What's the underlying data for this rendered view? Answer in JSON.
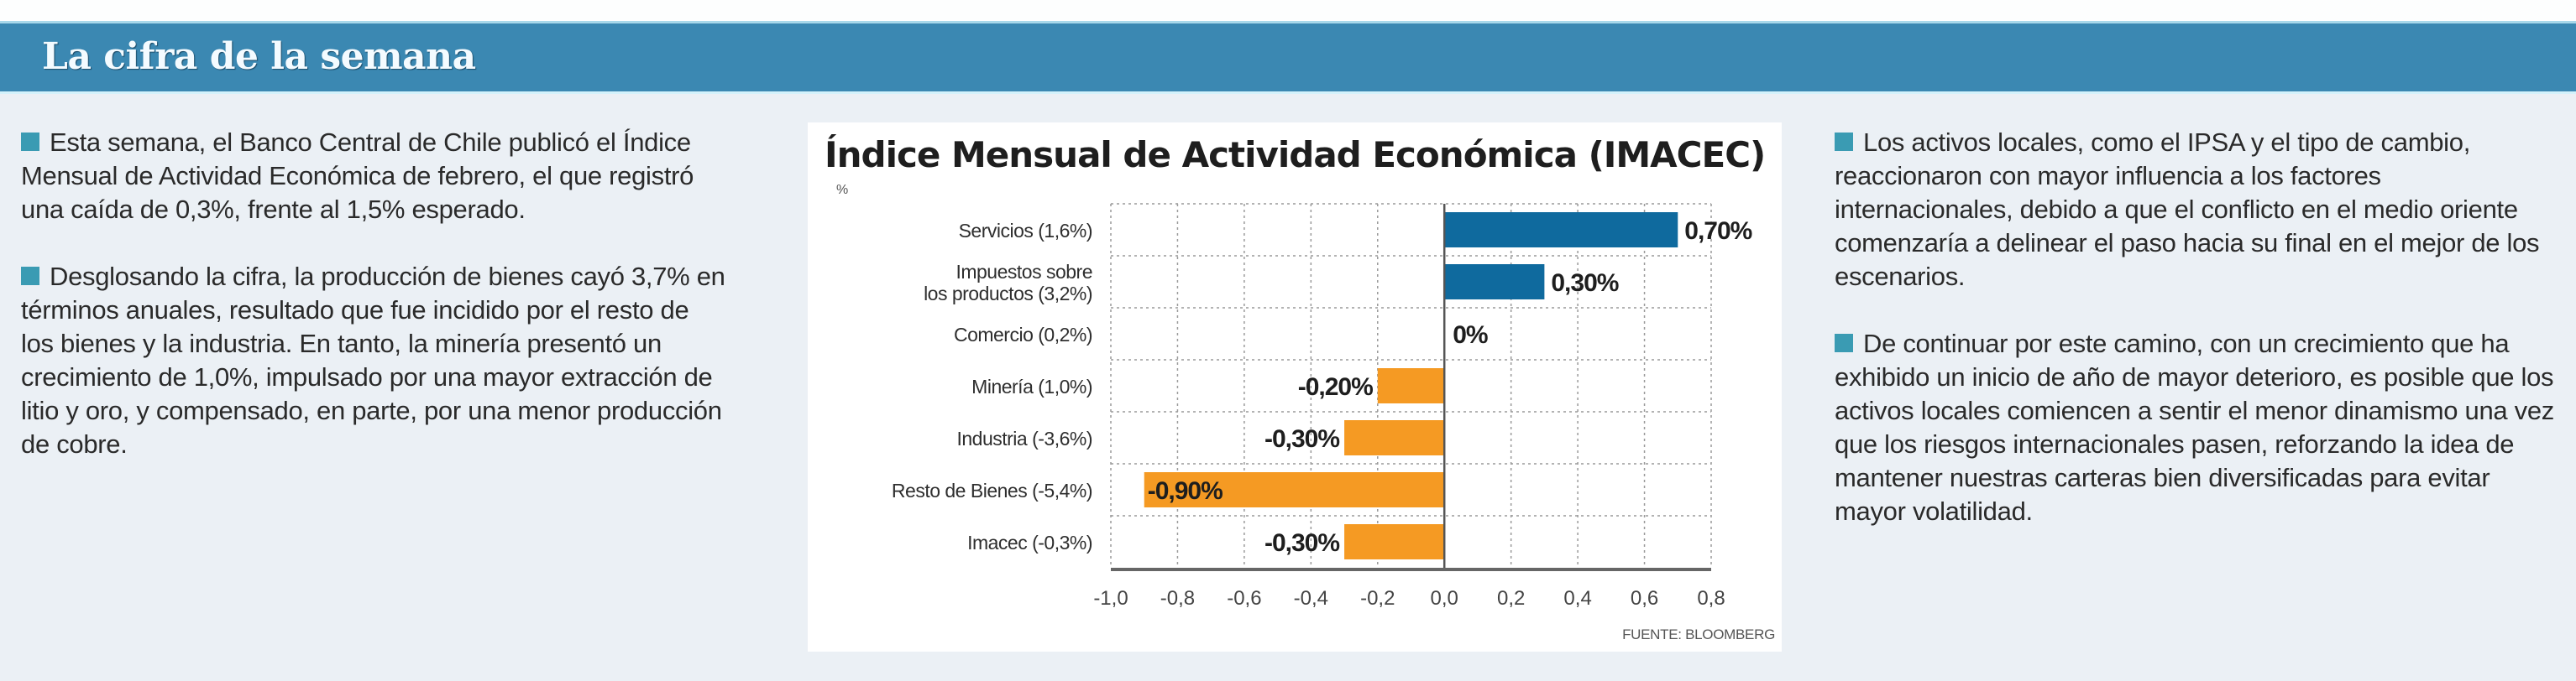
{
  "banner": {
    "title": "La cifra de la semana"
  },
  "left_column": {
    "paragraphs": [
      "Esta semana, el Banco Central de Chile publicó el Índice Mensual de Actividad Eco­nómica de febrero, el que registró una caí­da de 0,3%, frente al 1,5% esperado.",
      "Desglosando la cifra, la producción de bie­nes cayó 3,7% en términos anuales, resulta­do que fue incidido por el resto de los bienes y la industria. En tanto, la minería presentó un crecimiento de 1,0%, impulsado por una ma­yor extracción de litio y oro, y compensado, en parte, por una menor producción de cobre."
    ]
  },
  "right_column": {
    "paragraphs": [
      "Los activos locales, como el IPSA y el tipo de cambio, reaccionaron con mayor influencia a los factores internacionales, debido a que el conflic­to en el medio oriente comenzaría a delinear el paso hacia su final en el mejor de los escenarios.",
      "De continuar por este camino, con un creci­miento que ha exhibido un inicio de año de ma­yor deterioro, es posible que los activos locales comiencen a sentir el menor dinamismo una vez que los riesgos internacionales pasen, reforzan­do la idea de mantener nuestras carteras bien diversificadas para evitar mayor volatilidad."
    ]
  },
  "colors": {
    "banner": "#3b88b2",
    "bullet": "#3a9bb3",
    "positive_bar": "#0f6a9e",
    "negative_bar": "#f59a23",
    "background": "#ebf0f5"
  },
  "chart_data": {
    "type": "bar",
    "orientation": "horizontal",
    "title": "Índice Mensual de Actividad Económica (IMACEC)",
    "unit_label": "%",
    "source": "FUENTE: BLOOMBERG",
    "categories": [
      [
        "Servicios (1,6%)"
      ],
      [
        "Impuestos sobre",
        "los productos (3,2%)"
      ],
      [
        "Comercio (0,2%)"
      ],
      [
        "Minería (1,0%)"
      ],
      [
        "Industria (-3,6%)"
      ],
      [
        "Resto de Bienes (-5,4%)"
      ],
      [
        "Imacec (-0,3%)"
      ]
    ],
    "values": [
      0.7,
      0.3,
      0,
      -0.2,
      -0.3,
      -0.9,
      -0.3
    ],
    "data_labels": [
      "0,70%",
      "0,30%",
      "0%",
      "-0,20%",
      "-0,30%",
      "-0,90%",
      "-0,30%"
    ],
    "xlim": [
      -1.0,
      0.8
    ],
    "xticks": [
      -1.0,
      -0.8,
      -0.6,
      -0.4,
      -0.2,
      0.0,
      0.2,
      0.4,
      0.6,
      0.8
    ],
    "xtick_labels": [
      "-1,0",
      "-0,8",
      "-0,6",
      "-0,4",
      "-0,2",
      "0,0",
      "0,2",
      "0,4",
      "0,6",
      "0,8"
    ],
    "grid": true,
    "xlabel": "",
    "ylabel": ""
  }
}
